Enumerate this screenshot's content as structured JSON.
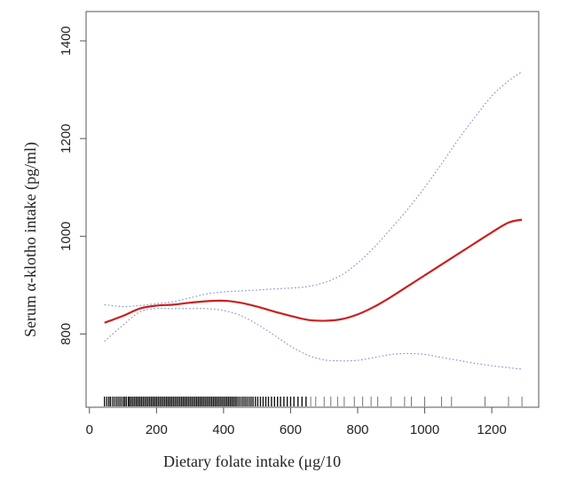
{
  "chart_data": {
    "type": "line",
    "title": "",
    "xlabel": "Dietary folate intake (μg/10",
    "ylabel": "Serum α-klotho intake (pg/ml)",
    "xlim": [
      -10,
      1340
    ],
    "ylim": [
      650,
      1460
    ],
    "x_ticks": [
      0,
      200,
      400,
      600,
      800,
      1000,
      1200
    ],
    "x_tick_labels": [
      "0",
      "200",
      "400",
      "600",
      "800",
      "1000",
      "1200"
    ],
    "y_ticks": [
      800,
      1000,
      1200,
      1400
    ],
    "y_tick_labels": [
      "800",
      "1000",
      "1200",
      "1400"
    ],
    "grid": false,
    "legend": "none",
    "series": [
      {
        "role": "estimate",
        "color": "#cc1f1f",
        "style": "solid",
        "x": [
          45,
          100,
          150,
          200,
          250,
          300,
          350,
          400,
          450,
          500,
          550,
          600,
          650,
          700,
          750,
          800,
          850,
          900,
          950,
          1000,
          1050,
          1100,
          1150,
          1200,
          1250,
          1290
        ],
        "y": [
          823,
          837,
          852,
          858,
          860,
          864,
          867,
          868,
          864,
          856,
          846,
          837,
          829,
          827,
          830,
          840,
          856,
          876,
          898,
          920,
          942,
          964,
          986,
          1008,
          1028,
          1034
        ]
      },
      {
        "role": "upper-ci",
        "color": "#7d8fd6",
        "style": "dotted",
        "x": [
          45,
          100,
          150,
          200,
          250,
          300,
          350,
          400,
          450,
          500,
          550,
          600,
          650,
          700,
          750,
          800,
          850,
          900,
          950,
          1000,
          1050,
          1100,
          1150,
          1200,
          1250,
          1290
        ],
        "y": [
          860,
          856,
          858,
          862,
          866,
          874,
          882,
          886,
          888,
          890,
          892,
          894,
          897,
          905,
          920,
          945,
          978,
          1016,
          1056,
          1100,
          1148,
          1198,
          1244,
          1287,
          1318,
          1337
        ]
      },
      {
        "role": "lower-ci",
        "color": "#7d8fd6",
        "style": "dotted",
        "x": [
          45,
          100,
          150,
          200,
          250,
          300,
          350,
          400,
          450,
          500,
          550,
          600,
          650,
          700,
          750,
          800,
          850,
          900,
          950,
          1000,
          1050,
          1100,
          1150,
          1200,
          1250,
          1290
        ],
        "y": [
          785,
          818,
          845,
          852,
          852,
          852,
          852,
          848,
          838,
          820,
          798,
          775,
          757,
          747,
          745,
          746,
          752,
          758,
          760,
          758,
          752,
          746,
          740,
          735,
          731,
          728
        ]
      }
    ],
    "rug": [
      45,
      52,
      58,
      63,
      70,
      76,
      82,
      88,
      94,
      100,
      105,
      110,
      116,
      120,
      125,
      130,
      135,
      140,
      145,
      150,
      155,
      160,
      165,
      170,
      175,
      180,
      185,
      190,
      195,
      200,
      205,
      210,
      215,
      220,
      225,
      230,
      235,
      240,
      245,
      250,
      255,
      260,
      265,
      270,
      275,
      280,
      285,
      290,
      295,
      300,
      305,
      310,
      315,
      320,
      325,
      330,
      335,
      340,
      345,
      350,
      355,
      360,
      365,
      370,
      375,
      380,
      385,
      390,
      395,
      400,
      405,
      410,
      415,
      420,
      425,
      430,
      435,
      440,
      446,
      452,
      458,
      464,
      470,
      476,
      482,
      488,
      495,
      502,
      510,
      518,
      526,
      534,
      543,
      552,
      561,
      570,
      580,
      590,
      600,
      610,
      622,
      634,
      646,
      660,
      675,
      700,
      720,
      740,
      760,
      790,
      815,
      840,
      860,
      900,
      940,
      960,
      1000,
      1050,
      1080,
      1180,
      1250,
      1290
    ]
  }
}
